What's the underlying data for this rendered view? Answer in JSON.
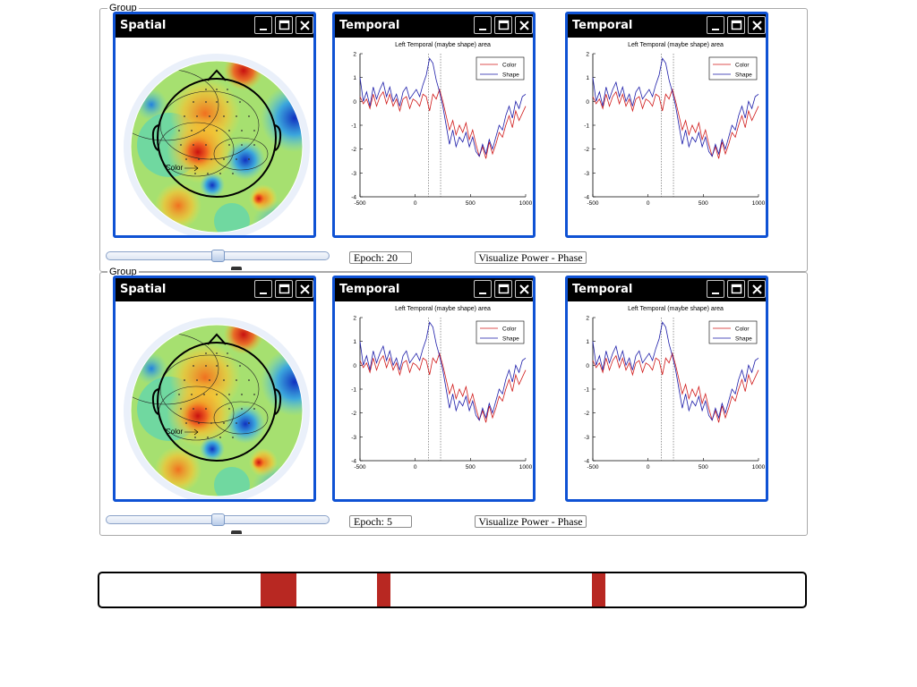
{
  "groups": [
    {
      "legend": "Group",
      "epoch_label": "Epoch: 20",
      "visualize_button": "Visualize Power - Phase",
      "slider_value": 0.5,
      "panels": [
        {
          "title": "Spatial",
          "type": "topomap",
          "annotation": "Color"
        },
        {
          "title": "Temporal",
          "type": "erp"
        },
        {
          "title": "Temporal",
          "type": "erp"
        }
      ]
    },
    {
      "legend": "Group",
      "epoch_label": "Epoch: 5",
      "visualize_button": "Visualize Power - Phase",
      "slider_value": 0.5,
      "panels": [
        {
          "title": "Spatial",
          "type": "topomap",
          "annotation": "Color"
        },
        {
          "title": "Temporal",
          "type": "erp"
        },
        {
          "title": "Temporal",
          "type": "erp"
        }
      ]
    }
  ],
  "temporal_plot": {
    "title": "Left Temporal (maybe shape) area",
    "x_ticks": [
      "-500",
      "0",
      "500",
      "1000"
    ],
    "y_ticks": [
      "2",
      "1",
      "0",
      "-1",
      "-2",
      "-3",
      "-4"
    ],
    "xlim": [
      -500,
      1000
    ],
    "ylim": [
      -4,
      2
    ],
    "legend": [
      {
        "label": "Color",
        "color": "#d01818"
      },
      {
        "label": "Shape",
        "color": "#1a1aa8"
      }
    ],
    "vlines": [
      120,
      230
    ],
    "series": [
      {
        "name": "Color",
        "color": "#d01818",
        "x": [
          -500,
          -470,
          -440,
          -410,
          -380,
          -350,
          -320,
          -290,
          -260,
          -230,
          -200,
          -170,
          -140,
          -110,
          -80,
          -50,
          -20,
          10,
          40,
          70,
          100,
          130,
          160,
          190,
          220,
          250,
          280,
          310,
          340,
          370,
          400,
          430,
          460,
          490,
          520,
          550,
          580,
          610,
          640,
          670,
          700,
          730,
          760,
          790,
          820,
          850,
          880,
          910,
          940,
          970,
          1000
        ],
        "y": [
          0.2,
          -0.1,
          0.1,
          -0.3,
          0.3,
          -0.2,
          0.2,
          0.4,
          -0.1,
          0.3,
          -0.2,
          0.1,
          -0.4,
          0.1,
          0.2,
          -0.3,
          0.1,
          0.0,
          -0.2,
          0.3,
          0.2,
          -0.4,
          0.3,
          0.1,
          0.5,
          0.0,
          -0.6,
          -1.2,
          -0.8,
          -1.4,
          -1.0,
          -1.3,
          -0.9,
          -1.6,
          -1.2,
          -1.8,
          -2.3,
          -1.9,
          -2.4,
          -1.7,
          -2.2,
          -1.8,
          -1.3,
          -1.5,
          -1.0,
          -0.6,
          -1.1,
          -0.4,
          -0.8,
          -0.5,
          -0.2
        ]
      },
      {
        "name": "Shape",
        "color": "#1a1aa8",
        "x": [
          -500,
          -470,
          -440,
          -410,
          -380,
          -350,
          -320,
          -290,
          -260,
          -230,
          -200,
          -170,
          -140,
          -110,
          -80,
          -50,
          -20,
          10,
          40,
          70,
          100,
          130,
          160,
          190,
          220,
          250,
          280,
          310,
          340,
          370,
          400,
          430,
          460,
          490,
          520,
          550,
          580,
          610,
          640,
          670,
          700,
          730,
          760,
          790,
          820,
          850,
          880,
          910,
          940,
          970,
          1000
        ],
        "y": [
          1.0,
          0.0,
          0.4,
          -0.2,
          0.6,
          0.1,
          0.5,
          0.8,
          0.2,
          0.6,
          0.0,
          0.3,
          -0.2,
          0.4,
          0.6,
          0.1,
          0.3,
          0.5,
          0.2,
          0.7,
          1.1,
          1.8,
          1.6,
          0.9,
          0.4,
          -0.2,
          -1.0,
          -1.8,
          -1.2,
          -1.9,
          -1.5,
          -1.7,
          -1.3,
          -1.9,
          -1.5,
          -2.1,
          -2.3,
          -1.8,
          -2.2,
          -1.6,
          -2.0,
          -1.5,
          -1.0,
          -1.2,
          -0.6,
          -0.2,
          -0.7,
          0.0,
          -0.3,
          0.2,
          0.3
        ]
      }
    ]
  },
  "timeline": {
    "markers": [
      {
        "start": 0.2285,
        "width": 0.051
      },
      {
        "start": 0.394,
        "width": 0.019
      },
      {
        "start": 0.6985,
        "width": 0.019
      }
    ],
    "marker_color": "#b82822"
  }
}
